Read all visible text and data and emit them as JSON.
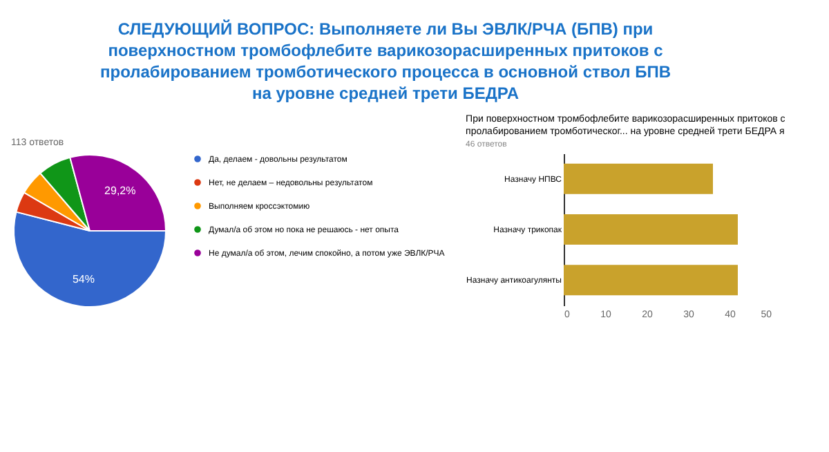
{
  "chart_data": [
    {
      "type": "other",
      "title": "СЛЕДУЮЩИЙ ВОПРОС: Выполняете ли Вы ЭВЛК/РЧА (БПВ) при поверхностном тромбофлебите варикозорасширенных притоков с пролабированием тромботического процесса в основной ствол БПВ на уровне средней трети БЕДРА"
    },
    {
      "type": "pie",
      "subtitle": "113 ответов",
      "categories": [
        "Да, делаем - довольны результатом",
        "Нет, не делаем – недовольны результатом",
        "Выполняем кроссэктомию",
        "Думал/а об этом но пока не решаюсь - нет опыта",
        "Не думал/а об этом, лечим спокойно, а потом уже ЭВЛК/РЧА"
      ],
      "values": [
        54,
        4.4,
        5.3,
        7.1,
        29.2
      ],
      "value_labels": [
        "54%",
        null,
        null,
        null,
        "29,2%"
      ],
      "colors": [
        "#3366cc",
        "#dc3912",
        "#ff9900",
        "#109618",
        "#990099"
      ],
      "legend": "right"
    },
    {
      "type": "bar",
      "orientation": "horizontal",
      "title": "При поверхностном тромбофлебите варикозорасширенных притоков с пролабированием  тромботическог... на уровне средней трети БЕДРА я",
      "subtitle": "46 ответов",
      "categories": [
        "Назначу НПВС",
        "Назначу трикопак",
        "Назначу антикоагулянты"
      ],
      "values": [
        36,
        42,
        42
      ],
      "color": "#c9a22c",
      "xlim": [
        0,
        50
      ],
      "xticks": [
        0,
        10,
        20,
        30,
        40,
        50
      ],
      "grid": false
    }
  ]
}
